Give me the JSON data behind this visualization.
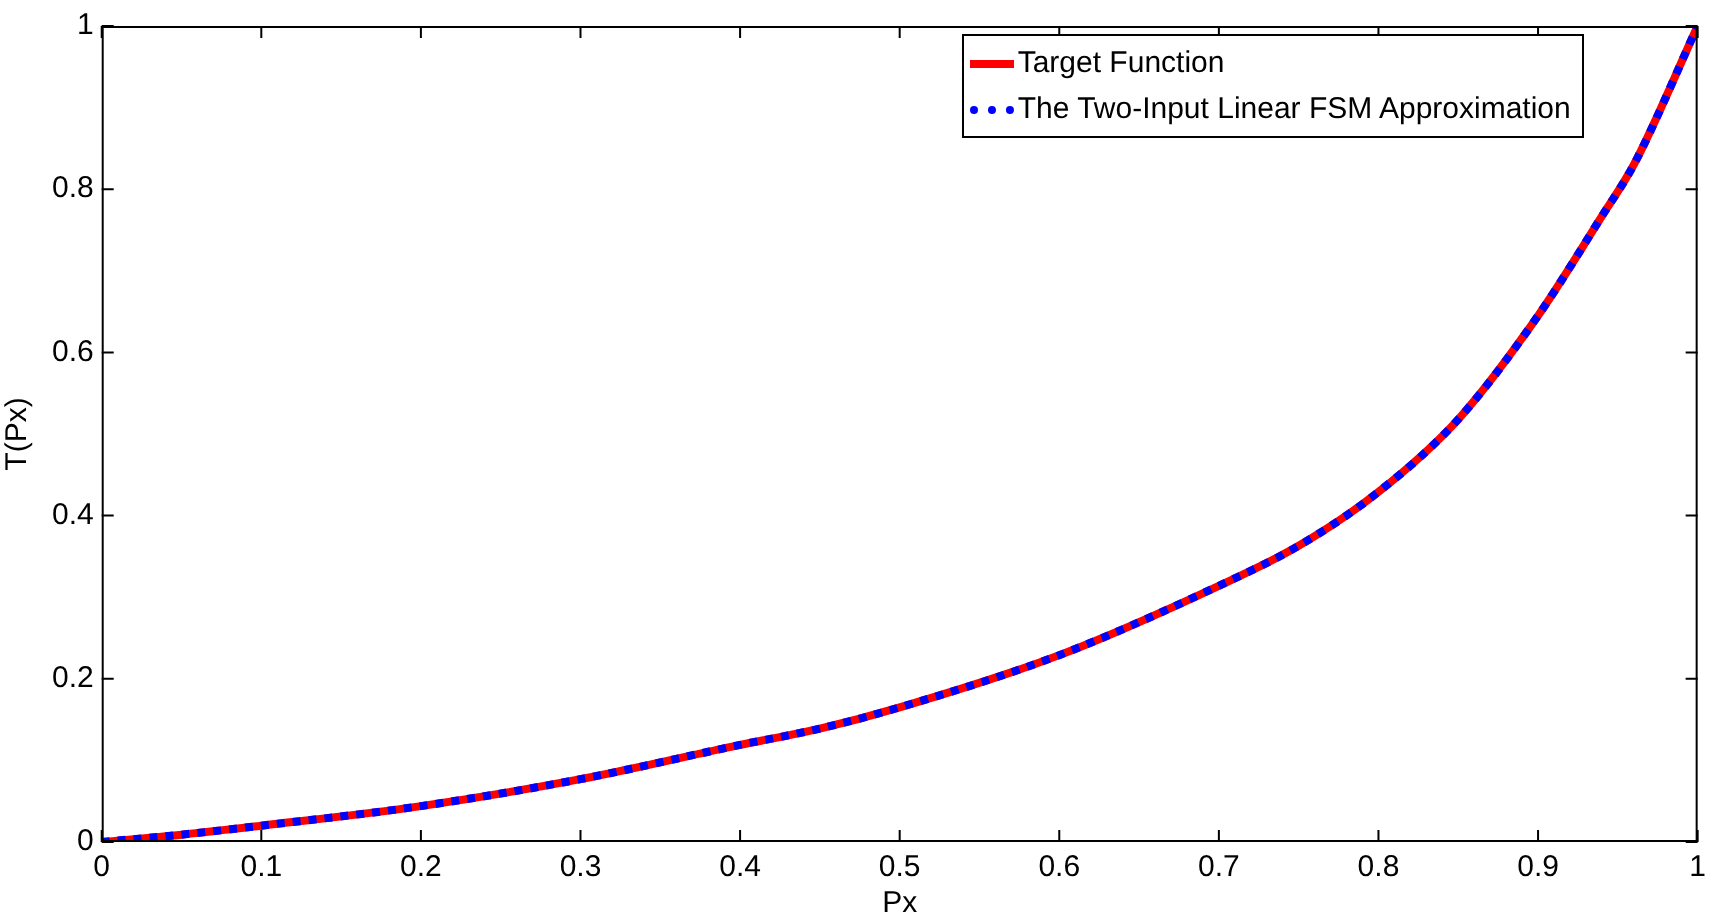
{
  "chart_data": {
    "type": "line",
    "xlabel": "Px",
    "ylabel": "T(Px)",
    "x": [
      0,
      0.05,
      0.1,
      0.2,
      0.3,
      0.4,
      0.45,
      0.5,
      0.6,
      0.7,
      0.75,
      0.8,
      0.85,
      0.9,
      0.94,
      0.96,
      1
    ],
    "series": [
      {
        "name": "Target Function",
        "color": "#ff0000",
        "line_style": "solid",
        "values": [
          0,
          0.009,
          0.02,
          0.044,
          0.077,
          0.119,
          0.139,
          0.165,
          0.229,
          0.314,
          0.363,
          0.429,
          0.518,
          0.645,
          0.767,
          0.83,
          1
        ]
      },
      {
        "name": "The Two-Input Linear FSM Approximation",
        "color": "#0000ff",
        "line_style": "dotted",
        "values": [
          0,
          0.009,
          0.02,
          0.044,
          0.077,
          0.119,
          0.139,
          0.165,
          0.229,
          0.314,
          0.363,
          0.429,
          0.518,
          0.645,
          0.767,
          0.83,
          1
        ]
      }
    ],
    "xlim": [
      0,
      1
    ],
    "xticks": [
      0,
      0.1,
      0.2,
      0.3,
      0.4,
      0.5,
      0.6,
      0.7,
      0.8,
      0.9,
      1
    ],
    "ylim": [
      0,
      1
    ],
    "yticks": [
      0,
      0.2,
      0.4,
      0.6,
      0.8,
      1
    ],
    "grid": false,
    "legend": "top right",
    "marker": "none"
  }
}
